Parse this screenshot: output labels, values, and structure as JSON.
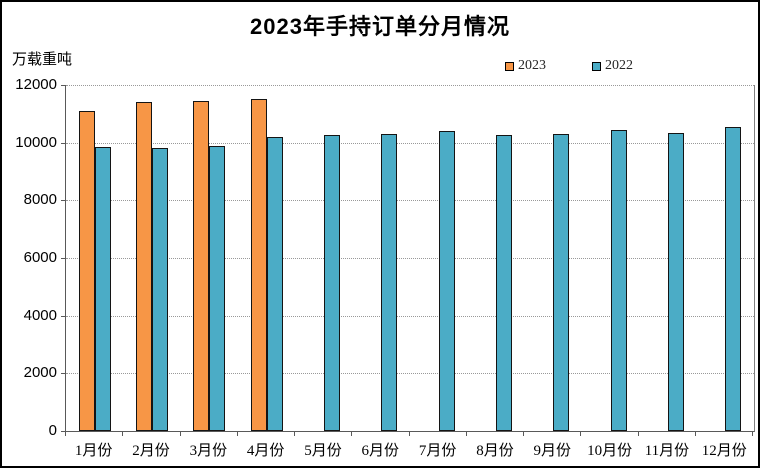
{
  "title": "2023年手持订单分月情况",
  "y_axis_unit": "万载重吨",
  "y_ticks": [
    "12000",
    "10000",
    "8000",
    "6000",
    "4000",
    "2000",
    "0"
  ],
  "chart_data": {
    "type": "bar",
    "title": "2023年手持订单分月情况",
    "ylabel": "万载重吨",
    "xlabel": "",
    "categories": [
      "1月份",
      "2月份",
      "3月份",
      "4月份",
      "5月份",
      "6月份",
      "7月份",
      "8月份",
      "9月份",
      "10月份",
      "11月份",
      "12月份"
    ],
    "series": [
      {
        "name": "2023",
        "color": "#F79646",
        "values": [
          11100,
          11400,
          11450,
          11500,
          null,
          null,
          null,
          null,
          null,
          null,
          null,
          null
        ]
      },
      {
        "name": "2022",
        "color": "#4BACC6",
        "values": [
          9850,
          9800,
          9900,
          10200,
          10250,
          10300,
          10400,
          10250,
          10300,
          10450,
          10350,
          10550
        ]
      }
    ],
    "ylim": [
      0,
      12000
    ],
    "y_tick_interval": 2000,
    "grid": "horizontal-dotted",
    "legend_position": "top-right",
    "bar_border_color": "#141414"
  }
}
